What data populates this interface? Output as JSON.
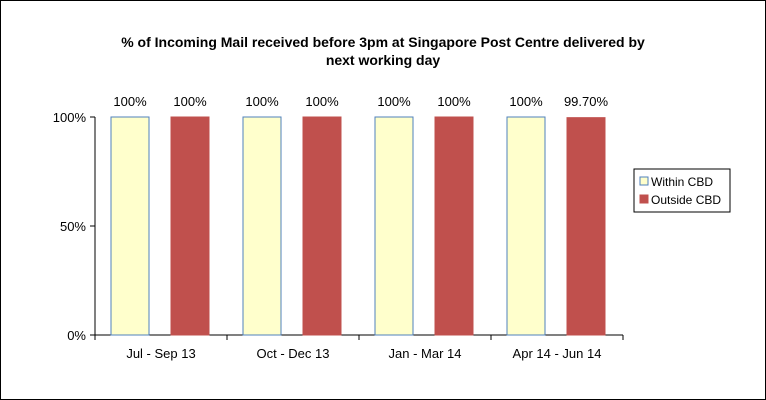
{
  "chart_data": {
    "type": "bar",
    "title_lines": [
      "% of Incoming Mail received before 3pm at Singapore Post Centre delivered by",
      "next working day"
    ],
    "categories": [
      "Jul - Sep 13",
      "Oct - Dec 13",
      "Jan - Mar 14",
      "Apr 14 - Jun 14"
    ],
    "series": [
      {
        "name": "Within CBD",
        "values": [
          100,
          100,
          100,
          100
        ],
        "labels": [
          "100%",
          "100%",
          "100%",
          "100%"
        ],
        "color": "#FFFFCC",
        "border_color": "#4F81BD"
      },
      {
        "name": "Outside CBD",
        "values": [
          100,
          100,
          100,
          99.7
        ],
        "labels": [
          "100%",
          "100%",
          "100%",
          "99.70%"
        ],
        "color": "#C0504D",
        "border_color": "#C0504D"
      }
    ],
    "ylim": [
      0,
      100
    ],
    "yticks": [
      0,
      50,
      100
    ],
    "ytick_labels": [
      "0%",
      "50%",
      "100%"
    ],
    "xlabel": "",
    "ylabel": "",
    "grid": false,
    "legend_position": "right"
  }
}
